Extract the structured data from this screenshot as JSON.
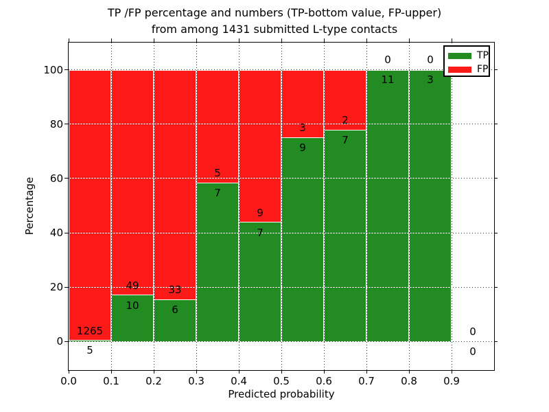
{
  "title": {
    "line1": "TP /FP percentage and numbers (TP-bottom value, FP-upper)",
    "line2": "from among 1431 submitted L-type contacts"
  },
  "chart_data": {
    "type": "bar",
    "stacked": true,
    "title": "TP /FP percentage and numbers (TP-bottom value, FP-upper) from among 1431 submitted L-type contacts",
    "xlabel": "Predicted probability",
    "ylabel": "Percentage",
    "xlim": [
      0.0,
      1.0
    ],
    "ylim": [
      -10.5,
      110
    ],
    "grid": true,
    "legend_position": "upper right",
    "total_submitted": 1431,
    "x_tick_values": [
      0.0,
      0.1,
      0.2,
      0.3,
      0.4,
      0.5,
      0.6,
      0.7,
      0.8,
      0.9
    ],
    "x_tick_labels": [
      "0.0",
      "0.1",
      "0.2",
      "0.3",
      "0.4",
      "0.5",
      "0.6",
      "0.7",
      "0.8",
      "0.9"
    ],
    "y_tick_values": [
      0,
      20,
      40,
      60,
      80,
      100
    ],
    "y_tick_labels": [
      "0",
      "20",
      "40",
      "60",
      "80",
      "100"
    ],
    "series": [
      {
        "name": "TP",
        "color": "#228b22",
        "position": "bottom"
      },
      {
        "name": "FP",
        "color": "#ff1a1a",
        "position": "top"
      }
    ],
    "bins": [
      {
        "x_range": [
          0.0,
          0.1
        ],
        "tp": 5,
        "fp": 1265,
        "tp_pct": 0.39
      },
      {
        "x_range": [
          0.1,
          0.2
        ],
        "tp": 10,
        "fp": 49,
        "tp_pct": 16.95
      },
      {
        "x_range": [
          0.2,
          0.3
        ],
        "tp": 6,
        "fp": 33,
        "tp_pct": 15.38
      },
      {
        "x_range": [
          0.3,
          0.4
        ],
        "tp": 7,
        "fp": 5,
        "tp_pct": 58.33
      },
      {
        "x_range": [
          0.4,
          0.5
        ],
        "tp": 7,
        "fp": 9,
        "tp_pct": 43.75
      },
      {
        "x_range": [
          0.5,
          0.6
        ],
        "tp": 9,
        "fp": 3,
        "tp_pct": 75.0
      },
      {
        "x_range": [
          0.6,
          0.7
        ],
        "tp": 7,
        "fp": 2,
        "tp_pct": 77.78
      },
      {
        "x_range": [
          0.7,
          0.8
        ],
        "tp": 11,
        "fp": 0,
        "tp_pct": 100.0
      },
      {
        "x_range": [
          0.8,
          0.9
        ],
        "tp": 3,
        "fp": 0,
        "tp_pct": 100.0
      },
      {
        "x_range": [
          0.9,
          1.0
        ],
        "tp": 0,
        "fp": 0,
        "tp_pct": null
      }
    ]
  }
}
